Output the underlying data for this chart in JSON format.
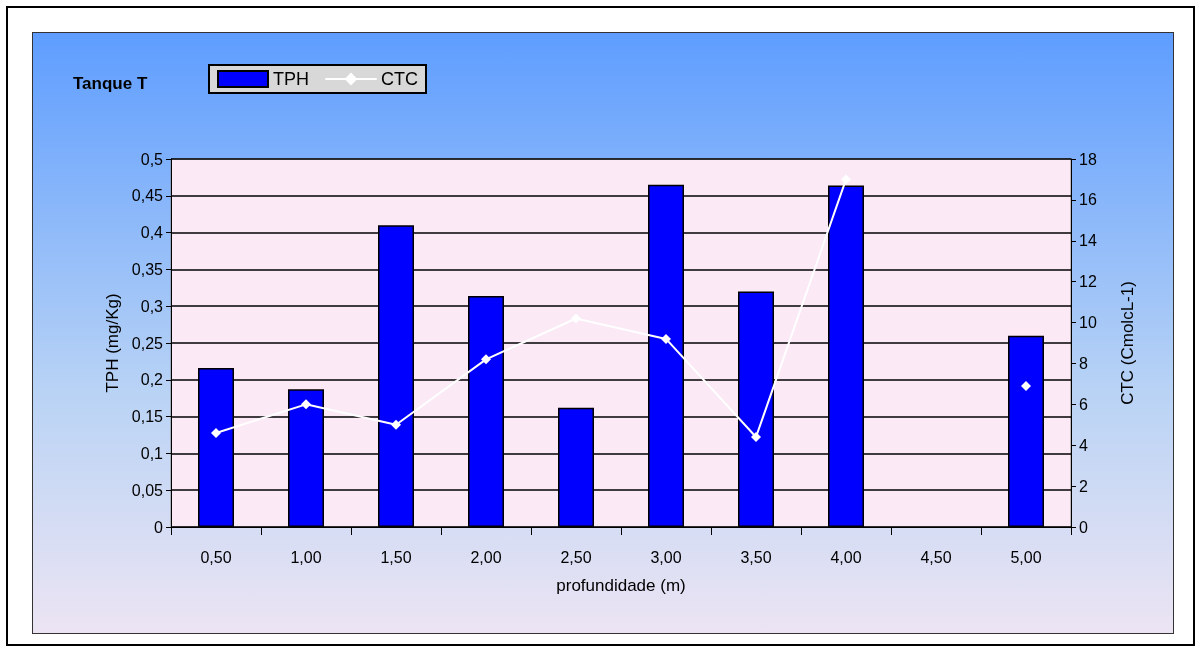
{
  "chart_data": {
    "type": "bar",
    "title": "Tanque T",
    "xlabel": "profundidade (m)",
    "ylabel": "TPH (mg/Kg)",
    "y2label": "CTC (CmolcL-1)",
    "categories": [
      "0,50",
      "1,00",
      "1,50",
      "2,00",
      "2,50",
      "3,00",
      "3,50",
      "4,00",
      "4,50",
      "5,00"
    ],
    "series": [
      {
        "name": "TPH",
        "color": "#0000ff",
        "values": [
          0.216,
          0.187,
          0.41,
          0.314,
          0.162,
          0.465,
          0.32,
          0.464,
          null,
          0.26
        ]
      },
      {
        "name": "CTC",
        "type": "line",
        "axis": "y2",
        "color": "#ffffff",
        "marker": "diamond",
        "values": [
          4.6,
          6.0,
          5.0,
          8.2,
          10.2,
          9.2,
          4.4,
          17.0,
          null,
          6.9
        ]
      }
    ],
    "ylim": [
      0,
      0.5
    ],
    "yticks": [
      0,
      {
        "value": 0.05,
        "label": "0,05"
      },
      {
        "value": 0.1,
        "label": "0,1"
      },
      {
        "value": 0.15,
        "label": "0,15"
      },
      {
        "value": 0.2,
        "label": "0,2"
      },
      {
        "value": 0.25,
        "label": "0,25"
      },
      {
        "value": 0.3,
        "label": "0,3"
      },
      {
        "value": 0.35,
        "label": "0,35"
      },
      {
        "value": 0.4,
        "label": "0,4"
      },
      {
        "value": 0.45,
        "label": "0,45"
      },
      {
        "value": 0.5,
        "label": "0,5"
      }
    ],
    "y2lim": [
      0,
      18
    ],
    "y2ticks": [
      0,
      2,
      4,
      6,
      8,
      10,
      12,
      14,
      16,
      18
    ],
    "grid": "y",
    "legend": "top left"
  }
}
